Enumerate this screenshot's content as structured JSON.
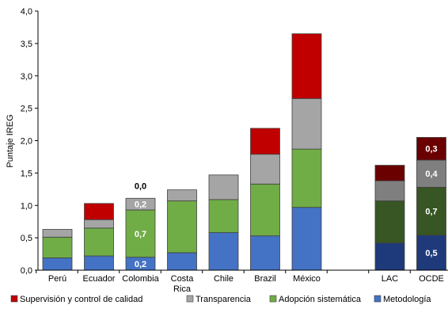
{
  "chart_data": {
    "type": "bar",
    "stacked": true,
    "ylabel": "Puntaje IREG",
    "ylim": [
      0,
      4
    ],
    "yticks": [
      "0,0",
      "0,5",
      "1,0",
      "1,5",
      "2,0",
      "2,5",
      "3,0",
      "3,5",
      "4,0"
    ],
    "categories": [
      {
        "label": [
          "Perú"
        ],
        "slot": 0
      },
      {
        "label": [
          "Ecuador"
        ],
        "slot": 1
      },
      {
        "label": [
          "Colombia"
        ],
        "slot": 2
      },
      {
        "label": [
          "Costa",
          "Rica"
        ],
        "slot": 3
      },
      {
        "label": [
          "Chile"
        ],
        "slot": 4
      },
      {
        "label": [
          "Brazil"
        ],
        "slot": 5
      },
      {
        "label": [
          "México"
        ],
        "slot": 6
      },
      {
        "label": [
          "LAC"
        ],
        "slot": 8,
        "group": "aggregate"
      },
      {
        "label": [
          "OCDE"
        ],
        "slot": 9,
        "group": "aggregate"
      }
    ],
    "series": [
      {
        "name": "Metodología",
        "values": [
          0.19,
          0.22,
          0.2,
          0.27,
          0.58,
          0.53,
          0.97,
          0.42,
          0.54
        ]
      },
      {
        "name": "Adopción sistemática",
        "values": [
          0.32,
          0.43,
          0.73,
          0.8,
          0.51,
          0.8,
          0.9,
          0.65,
          0.74
        ]
      },
      {
        "name": "Transparencia",
        "values": [
          0.12,
          0.13,
          0.18,
          0.17,
          0.38,
          0.46,
          0.78,
          0.31,
          0.42
        ]
      },
      {
        "name": "Supervisión y control de calidad",
        "values": [
          0,
          0.25,
          0,
          0,
          0,
          0.4,
          1.0,
          0.24,
          0.35
        ]
      }
    ],
    "data_labels": [
      {
        "category": "Colombia",
        "series": "Metodología",
        "text": "0,2"
      },
      {
        "category": "Colombia",
        "series": "Adopción sistemática",
        "text": "0,7"
      },
      {
        "category": "Colombia",
        "series": "Transparencia",
        "text": "0,2"
      },
      {
        "category": "Colombia",
        "series": "Supervisión y control de calidad",
        "text": "0,0",
        "position": "above"
      },
      {
        "category": "OCDE",
        "series": "Metodología",
        "text": "0,5"
      },
      {
        "category": "OCDE",
        "series": "Adopción sistemática",
        "text": "0,7"
      },
      {
        "category": "OCDE",
        "series": "Transparencia",
        "text": "0,4"
      },
      {
        "category": "OCDE",
        "series": "Supervisión y control de calidad",
        "text": "0,3"
      }
    ],
    "colors": {
      "Metodología": "#4472C4",
      "Adopción sistemática": "#70AD47",
      "Transparencia": "#A5A5A5",
      "Supervisión y control de calidad": "#C00000"
    },
    "aggregate_colors": {
      "Metodología": "#1F3A7A",
      "Adopción sistemática": "#375623",
      "Transparencia": "#7F7F7F",
      "Supervisión y control de calidad": "#6B0000"
    },
    "legend_order": [
      "Supervisión y control de calidad",
      "Transparencia",
      "Adopción sistemática",
      "Metodología"
    ],
    "legend_position": "bottom",
    "grid": false
  }
}
